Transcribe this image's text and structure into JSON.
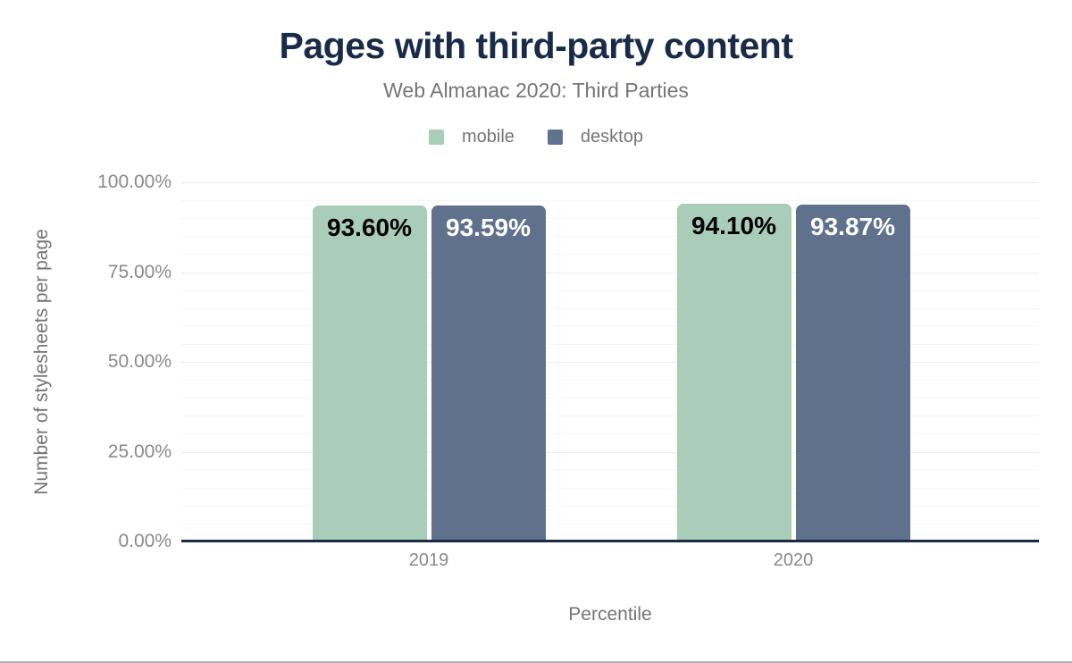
{
  "title": "Pages with third-party content",
  "subtitle": "Web Almanac 2020: Third Parties",
  "legend": {
    "items": [
      {
        "label": "mobile",
        "color": "#a9cdb8"
      },
      {
        "label": "desktop",
        "color": "#60718e"
      }
    ]
  },
  "colors": {
    "title": "#1a2b49",
    "subtitle_text": "#757575",
    "tick_text": "#8a8a8a",
    "axis_line": "#1a2b49",
    "grid_major": "#ececec",
    "grid_minor": "#f7f7f7",
    "mobile": "#a9cdb8",
    "desktop": "#60718e",
    "label_on_mobile": "#000000",
    "label_on_desktop": "#ffffff",
    "background": "#ffffff",
    "bottom_border": "#b3b3b3"
  },
  "chart_data": {
    "type": "bar",
    "title": "Pages with third-party content",
    "subtitle": "Web Almanac 2020: Third Parties",
    "xlabel": "Percentile",
    "ylabel": "Number of stylesheets per page",
    "categories": [
      "2019",
      "2020"
    ],
    "series": [
      {
        "name": "mobile",
        "color": "#a9cdb8",
        "label_color": "#000000",
        "values": [
          93.6,
          94.1
        ],
        "labels": [
          "93.60%",
          "94.10%"
        ]
      },
      {
        "name": "desktop",
        "color": "#60718e",
        "label_color": "#ffffff",
        "values": [
          93.59,
          93.87
        ],
        "labels": [
          "93.59%",
          "93.87%"
        ]
      }
    ],
    "ylim": [
      0,
      100
    ],
    "y_ticks": [
      {
        "value": 100,
        "label": "100.00%"
      },
      {
        "value": 75,
        "label": "75.00%"
      },
      {
        "value": 50,
        "label": "50.00%"
      },
      {
        "value": 25,
        "label": "25.00%"
      },
      {
        "value": 0,
        "label": "0.00%"
      }
    ],
    "grid": {
      "major_step": 25,
      "minor_step": 5
    },
    "legend_position": "top"
  }
}
